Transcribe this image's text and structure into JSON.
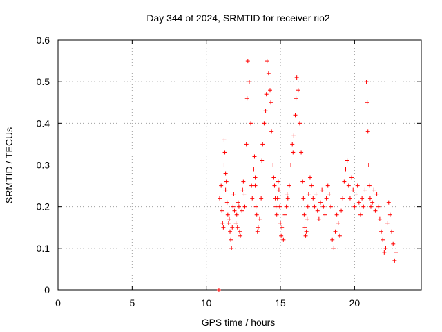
{
  "chart_data": {
    "type": "scatter",
    "title": "Day 344 of 2024, SRMTID for receiver rio2",
    "xlabel": "GPS time / hours",
    "ylabel": "SRMTID / TECUs",
    "xlim": [
      0,
      24.5
    ],
    "ylim": [
      0,
      0.6
    ],
    "xticks": [
      0,
      5,
      10,
      15,
      20
    ],
    "yticks": [
      0,
      0.1,
      0.2,
      0.3,
      0.4,
      0.5,
      0.6
    ],
    "xtick_labels": [
      "0",
      "5",
      "10",
      "15",
      "20"
    ],
    "ytick_labels": [
      "0",
      "0.1",
      "0.2",
      "0.3",
      "0.4",
      "0.5",
      "0.6"
    ],
    "grid": true,
    "marker": "+",
    "series": [
      {
        "name": "SRMTID",
        "color": "#ff0000",
        "x": [
          10.85,
          10.9,
          11.0,
          11.05,
          11.1,
          11.15,
          11.2,
          11.2,
          11.25,
          11.3,
          11.3,
          11.35,
          11.4,
          11.45,
          11.5,
          11.55,
          11.6,
          11.65,
          11.7,
          11.75,
          11.8,
          11.85,
          11.9,
          12.0,
          12.05,
          12.1,
          12.15,
          12.2,
          12.25,
          12.3,
          12.4,
          12.45,
          12.5,
          12.55,
          12.6,
          12.7,
          12.75,
          12.8,
          12.9,
          13.0,
          13.05,
          13.1,
          13.2,
          13.25,
          13.3,
          13.3,
          13.35,
          13.4,
          13.45,
          13.5,
          13.6,
          13.7,
          13.75,
          13.8,
          13.9,
          14.0,
          14.05,
          14.1,
          14.2,
          14.3,
          14.35,
          14.4,
          14.5,
          14.55,
          14.6,
          14.65,
          14.7,
          14.75,
          14.8,
          14.85,
          14.9,
          14.95,
          15.0,
          15.05,
          15.1,
          15.2,
          15.3,
          15.4,
          15.45,
          15.5,
          15.6,
          15.7,
          15.8,
          15.85,
          15.9,
          16.0,
          16.05,
          16.1,
          16.2,
          16.3,
          16.4,
          16.5,
          16.55,
          16.6,
          16.65,
          16.7,
          16.75,
          16.8,
          16.85,
          16.9,
          17.0,
          17.1,
          17.2,
          17.3,
          17.4,
          17.5,
          17.6,
          17.7,
          17.8,
          17.9,
          18.0,
          18.1,
          18.2,
          18.3,
          18.4,
          18.5,
          18.6,
          18.7,
          18.8,
          18.9,
          19.0,
          19.1,
          19.2,
          19.3,
          19.4,
          19.5,
          19.6,
          19.7,
          19.8,
          19.9,
          20.0,
          20.1,
          20.2,
          20.3,
          20.4,
          20.5,
          20.6,
          20.7,
          20.8,
          20.85,
          20.9,
          20.95,
          21.0,
          21.05,
          21.1,
          21.2,
          21.3,
          21.4,
          21.5,
          21.6,
          21.7,
          21.8,
          21.9,
          22.0,
          22.1,
          22.2,
          22.3,
          22.4,
          22.5,
          22.6,
          22.7,
          22.8
        ],
        "y": [
          0.0,
          0.22,
          0.25,
          0.19,
          0.16,
          0.15,
          0.3,
          0.36,
          0.33,
          0.28,
          0.24,
          0.26,
          0.21,
          0.18,
          0.16,
          0.17,
          0.14,
          0.12,
          0.1,
          0.15,
          0.2,
          0.23,
          0.19,
          0.16,
          0.18,
          0.15,
          0.21,
          0.2,
          0.14,
          0.13,
          0.19,
          0.24,
          0.26,
          0.23,
          0.2,
          0.35,
          0.46,
          0.55,
          0.5,
          0.4,
          0.25,
          0.22,
          0.29,
          0.32,
          0.27,
          0.25,
          0.2,
          0.18,
          0.14,
          0.15,
          0.17,
          0.22,
          0.31,
          0.35,
          0.4,
          0.43,
          0.47,
          0.55,
          0.52,
          0.48,
          0.45,
          0.38,
          0.3,
          0.27,
          0.25,
          0.22,
          0.2,
          0.18,
          0.22,
          0.26,
          0.24,
          0.2,
          0.16,
          0.13,
          0.15,
          0.12,
          0.18,
          0.2,
          0.23,
          0.22,
          0.25,
          0.3,
          0.35,
          0.33,
          0.37,
          0.42,
          0.46,
          0.51,
          0.48,
          0.4,
          0.33,
          0.26,
          0.22,
          0.18,
          0.15,
          0.13,
          0.14,
          0.17,
          0.2,
          0.23,
          0.27,
          0.25,
          0.22,
          0.2,
          0.23,
          0.19,
          0.17,
          0.21,
          0.24,
          0.2,
          0.18,
          0.22,
          0.25,
          0.23,
          0.2,
          0.12,
          0.1,
          0.14,
          0.18,
          0.16,
          0.13,
          0.19,
          0.22,
          0.26,
          0.29,
          0.31,
          0.25,
          0.22,
          0.27,
          0.24,
          0.2,
          0.23,
          0.25,
          0.21,
          0.18,
          0.22,
          0.2,
          0.24,
          0.5,
          0.45,
          0.38,
          0.3,
          0.25,
          0.22,
          0.2,
          0.21,
          0.24,
          0.19,
          0.23,
          0.2,
          0.17,
          0.14,
          0.12,
          0.09,
          0.1,
          0.16,
          0.21,
          0.18,
          0.14,
          0.11,
          0.07,
          0.09
        ]
      }
    ]
  }
}
